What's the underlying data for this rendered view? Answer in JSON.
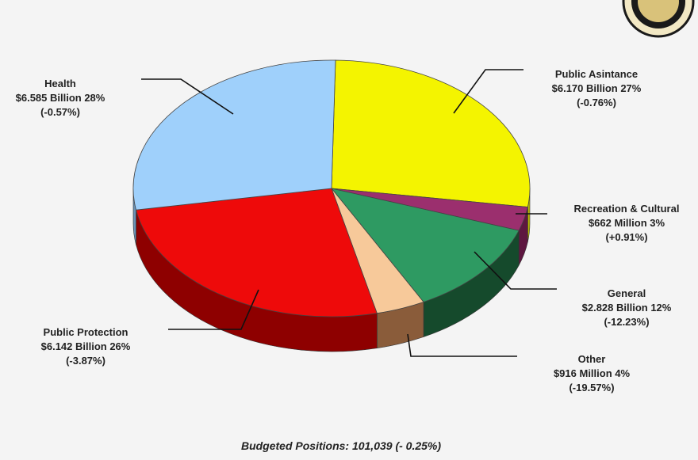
{
  "chart_data": {
    "type": "pie",
    "slices": [
      {
        "key": "public-assistance",
        "name": "Public Asintance",
        "amount": "$6.170 Billion",
        "value": 27,
        "change": "(-0.76%)",
        "color": "#f4f400",
        "side": "#bdbd00"
      },
      {
        "key": "recreation-cultural",
        "name": "Recreation & Cultural",
        "amount": "$662 Million",
        "value": 3,
        "change": "(+0.91%)",
        "color": "#9b2f6e",
        "side": "#5e1740"
      },
      {
        "key": "general",
        "name": "General",
        "amount": "$2.828 Billion",
        "value": 12,
        "change": "(-12.23%)",
        "color": "#2e9a62",
        "side": "#154a2c"
      },
      {
        "key": "other",
        "name": "Other",
        "amount": "$916 Million",
        "value": 4,
        "change": "(-19.57%)",
        "color": "#f7c99a",
        "side": "#8a5c3a"
      },
      {
        "key": "public-protection",
        "name": "Public Protection",
        "amount": "$6.142 Billion",
        "value": 26,
        "change": "(-3.87%)",
        "color": "#ee0a0a",
        "side": "#8e0000"
      },
      {
        "key": "health",
        "name": "Health",
        "amount": "$6.585 Billion",
        "value": 28,
        "change": "(-0.57%)",
        "color": "#9fd0fb",
        "side": "#6b92b6"
      }
    ],
    "footnote": "Budgeted Positions: 101,039 (- 0.25%)"
  }
}
